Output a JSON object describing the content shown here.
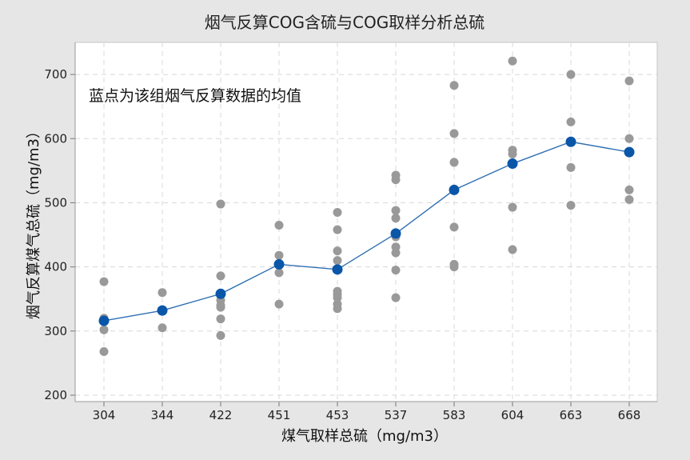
{
  "chart_data": {
    "type": "scatter",
    "title": "烟气反算COG含硫与COG取样分析总硫",
    "xlabel": "煤气取样总硫（mg/m3）",
    "ylabel": "烟气反算煤气总硫（mg/m3）",
    "annotation": "蓝点为该组烟气反算数据的均值",
    "categories": [
      "304",
      "344",
      "422",
      "451",
      "453",
      "537",
      "583",
      "604",
      "663",
      "668"
    ],
    "ylim": [
      190,
      750
    ],
    "yticks": [
      200,
      300,
      400,
      500,
      600,
      700
    ],
    "grid": true,
    "colors": {
      "points": "#999999",
      "mean": "#0a56a8",
      "mean_line": "#2f6fb3",
      "plot_bg": "#ffffff",
      "page_bg": "#e6e6e6",
      "grid": "#d8d8d8"
    },
    "series": [
      {
        "values_by_category": [
          [
            377,
            320,
            302,
            268
          ],
          [
            360,
            305
          ],
          [
            498,
            386,
            348,
            340,
            337,
            319,
            293
          ],
          [
            465,
            418,
            391,
            342
          ],
          [
            485,
            458,
            425,
            410,
            362,
            357,
            352,
            342,
            335
          ],
          [
            543,
            536,
            488,
            476,
            447,
            431,
            422,
            395,
            352
          ],
          [
            683,
            608,
            563,
            462,
            404,
            400
          ],
          [
            721,
            582,
            576,
            493,
            427
          ],
          [
            700,
            626,
            555,
            496
          ],
          [
            690,
            600,
            520,
            505
          ]
        ]
      },
      {
        "values": [
          316,
          332,
          358,
          404,
          396,
          452,
          520,
          561,
          595,
          579
        ]
      }
    ]
  }
}
